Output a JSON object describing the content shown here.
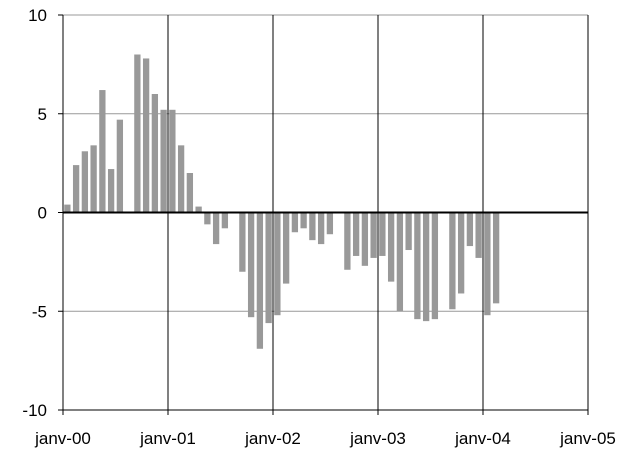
{
  "chart_data": {
    "type": "bar",
    "title": "",
    "xlabel": "",
    "ylabel": "",
    "ylim": [
      -10,
      10
    ],
    "y_ticks": [
      -10,
      -5,
      0,
      5,
      10
    ],
    "y_tick_labels": [
      "-10",
      "-5",
      "0",
      "5",
      "10"
    ],
    "x_tick_labels": [
      "janv-00",
      "janv-01",
      "janv-02",
      "janv-03",
      "janv-04",
      "janv-05"
    ],
    "grid": true,
    "legend": "none",
    "colors": {
      "bar": "#999999",
      "grid": "#999999",
      "axis": "#000000",
      "zero_line": "#000000"
    },
    "series": [
      {
        "values": [
          0.4,
          2.4,
          3.1,
          3.4,
          6.2,
          2.2,
          4.7,
          null,
          8.0,
          7.8,
          6.0,
          5.2,
          5.2,
          3.4,
          2.0,
          0.3,
          -0.6,
          -1.6,
          -0.8,
          null,
          -3.0,
          -5.3,
          -6.9,
          -5.6,
          -5.2,
          -3.6,
          -1.0,
          -0.8,
          -1.4,
          -1.6,
          -1.1,
          null,
          -2.9,
          -2.2,
          -2.7,
          -2.3,
          -2.2,
          -3.5,
          -5.0,
          -1.9,
          -5.4,
          -5.5,
          -5.4,
          null,
          -4.9,
          -4.1,
          -1.7,
          -2.3,
          -5.2,
          -4.6
        ]
      }
    ]
  }
}
